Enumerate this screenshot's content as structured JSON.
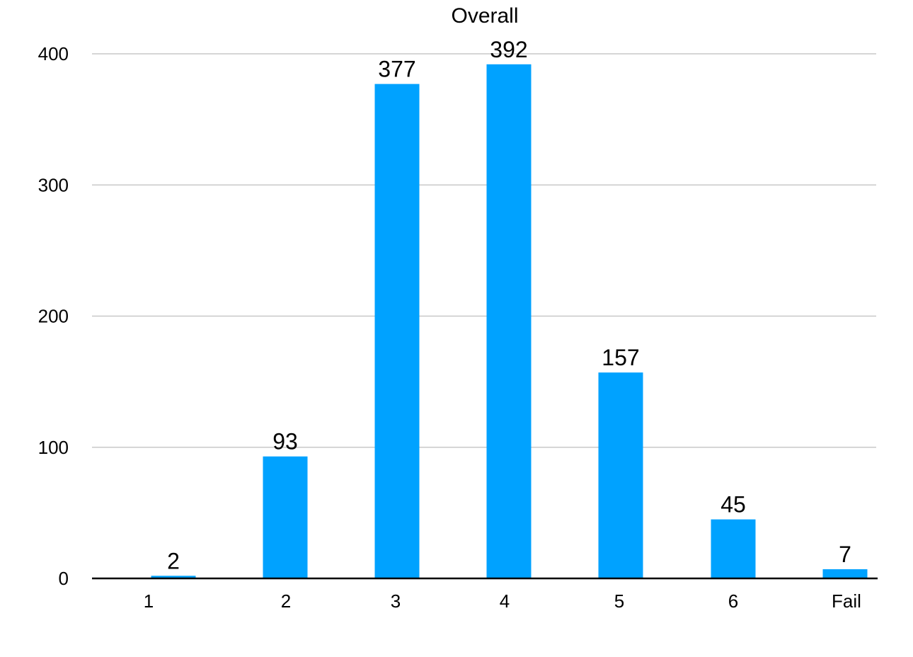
{
  "chart_data": {
    "type": "bar",
    "title": "Overall",
    "categories": [
      "1",
      "2",
      "3",
      "4",
      "5",
      "6",
      "Fail"
    ],
    "values": [
      2,
      93,
      377,
      392,
      157,
      45,
      7
    ],
    "data_labels": [
      "2",
      "93",
      "377",
      "392",
      "157",
      "45",
      "7"
    ],
    "yticks": [
      "0",
      "100",
      "200",
      "300",
      "400"
    ],
    "ylim": [
      0,
      400
    ],
    "xlabel": "",
    "ylabel": "",
    "grid": true,
    "legend": "none",
    "bar_color": "#00a2ff"
  }
}
